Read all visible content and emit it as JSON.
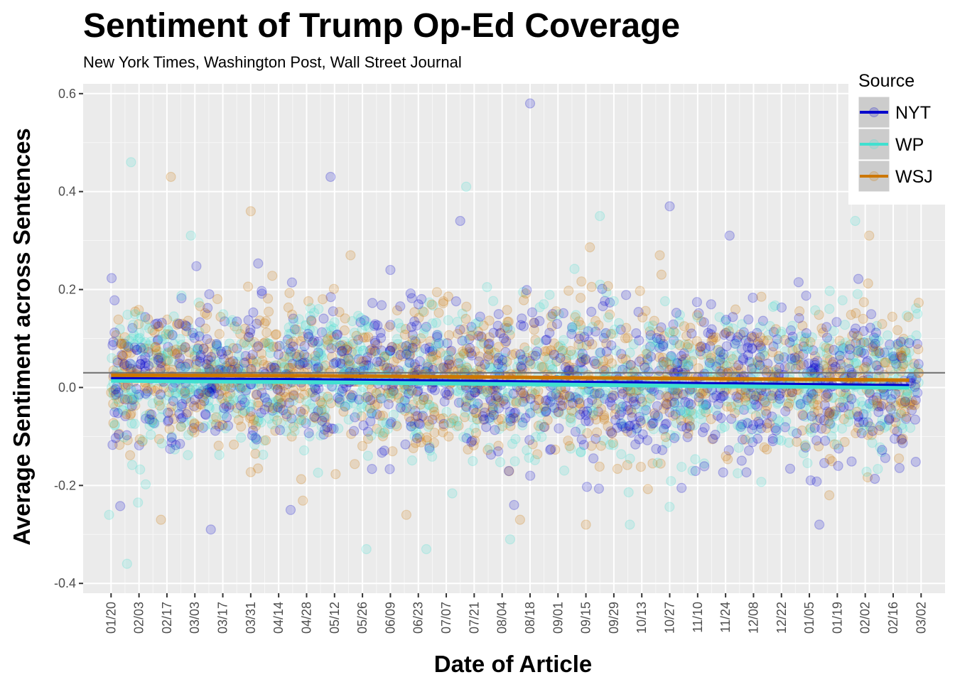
{
  "chart_data": {
    "type": "scatter",
    "title": "Sentiment of Trump Op-Ed Coverage",
    "subtitle": "New York Times, Washington Post, Wall Street Journal",
    "xlabel": "Date of Article",
    "ylabel": "Average Sentiment across Sentences",
    "x_tick_labels": [
      "01/20",
      "02/03",
      "02/17",
      "03/03",
      "03/17",
      "03/31",
      "04/14",
      "04/28",
      "05/12",
      "05/26",
      "06/09",
      "06/23",
      "07/07",
      "07/21",
      "08/04",
      "08/18",
      "09/01",
      "09/15",
      "09/29",
      "10/13",
      "10/27",
      "11/10",
      "11/24",
      "12/08",
      "12/22",
      "01/05",
      "01/19",
      "02/02",
      "02/16",
      "03/02"
    ],
    "x_tick_interval_days": 14,
    "xlim_days": [
      -14,
      418
    ],
    "y_ticks": [
      -0.4,
      -0.2,
      0.0,
      0.2,
      0.4,
      0.6
    ],
    "y_tick_labels": [
      "-0.4",
      "-0.2",
      "0.0",
      "0.2",
      "0.4",
      "0.6"
    ],
    "ylim": [
      -0.42,
      0.62
    ],
    "reference_line_y": 0.03,
    "grid": true,
    "legend": {
      "title": "Source",
      "placement": "top-right",
      "entries": [
        {
          "name": "NYT",
          "color": "#0000cc"
        },
        {
          "name": "WP",
          "color": "#40e0d0"
        },
        {
          "name": "WSJ",
          "color": "#cc7700"
        }
      ]
    },
    "series": [
      {
        "name": "NYT",
        "color": "#0000cc",
        "trend": [
          [
            0,
            0.019
          ],
          [
            100,
            0.017
          ],
          [
            200,
            0.013
          ],
          [
            300,
            0.009
          ],
          [
            400,
            0.005
          ]
        ],
        "notable_points": [
          [
            110,
            0.43
          ],
          [
            210,
            0.58
          ],
          [
            280,
            0.37
          ],
          [
            310,
            0.31
          ],
          [
            50,
            -0.29
          ],
          [
            90,
            -0.25
          ],
          [
            355,
            -0.28
          ],
          [
            202,
            -0.24
          ],
          [
            175,
            0.34
          ],
          [
            140,
            0.24
          ]
        ]
      },
      {
        "name": "WP",
        "color": "#40e0d0",
        "trend": [
          [
            0,
            0.015
          ],
          [
            100,
            0.012
          ],
          [
            200,
            0.008
          ],
          [
            300,
            0.004
          ],
          [
            400,
            0.001
          ]
        ],
        "notable_points": [
          [
            10,
            0.46
          ],
          [
            178,
            0.41
          ],
          [
            40,
            0.31
          ],
          [
            245,
            0.35
          ],
          [
            373,
            0.34
          ],
          [
            -1,
            -0.26
          ],
          [
            8,
            -0.36
          ],
          [
            128,
            -0.33
          ],
          [
            158,
            -0.33
          ],
          [
            260,
            -0.28
          ],
          [
            200,
            -0.31
          ]
        ]
      },
      {
        "name": "WSJ",
        "color": "#cc7700",
        "trend": [
          [
            0,
            0.025
          ],
          [
            100,
            0.024
          ],
          [
            200,
            0.021
          ],
          [
            300,
            0.018
          ],
          [
            400,
            0.015
          ]
        ],
        "notable_points": [
          [
            30,
            0.43
          ],
          [
            70,
            0.36
          ],
          [
            275,
            0.27
          ],
          [
            380,
            0.31
          ],
          [
            120,
            0.27
          ],
          [
            25,
            -0.27
          ],
          [
            205,
            -0.27
          ],
          [
            238,
            -0.28
          ],
          [
            148,
            -0.26
          ],
          [
            360,
            -0.22
          ]
        ]
      }
    ],
    "points_per_series": 1100,
    "point_alpha": 0.18
  }
}
